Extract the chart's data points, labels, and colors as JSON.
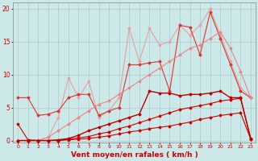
{
  "bg_color": "#cce8e8",
  "grid_color": "#aacccc",
  "xlabel": "Vent moyen/en rafales ( km/h )",
  "xlabel_color": "#cc0000",
  "xlabel_fontsize": 6.5,
  "xtick_color": "#cc0000",
  "ytick_color": "#cc0000",
  "x": [
    0,
    1,
    2,
    3,
    4,
    5,
    6,
    7,
    8,
    9,
    10,
    11,
    12,
    13,
    14,
    15,
    16,
    17,
    18,
    19,
    20,
    21,
    22,
    23
  ],
  "ylim": [
    -0.3,
    21
  ],
  "xlim": [
    -0.5,
    23.5
  ],
  "yticks": [
    0,
    5,
    10,
    15,
    20
  ],
  "series": [
    {
      "name": "line_dark_red_bottom_flat",
      "color": "#cc0000",
      "lw": 0.8,
      "marker": "D",
      "ms": 1.5,
      "zorder": 3,
      "y": [
        2.5,
        0.1,
        0.0,
        0.0,
        0.0,
        0.1,
        0.2,
        0.3,
        0.5,
        0.7,
        1.0,
        1.3,
        1.5,
        1.8,
        2.0,
        2.2,
        2.5,
        2.8,
        3.2,
        3.5,
        3.8,
        4.0,
        4.2,
        0.2
      ]
    },
    {
      "name": "line_dark_red_linear1",
      "color": "#cc0000",
      "lw": 0.8,
      "marker": "D",
      "ms": 1.5,
      "zorder": 3,
      "y": [
        0.0,
        0.0,
        0.0,
        0.0,
        0.0,
        0.2,
        0.4,
        0.6,
        1.0,
        1.3,
        1.8,
        2.2,
        2.7,
        3.2,
        3.7,
        4.2,
        4.7,
        5.0,
        5.3,
        5.6,
        6.0,
        6.2,
        6.4,
        0.2
      ]
    },
    {
      "name": "line_dark_red_linear2",
      "color": "#bb0000",
      "lw": 1.0,
      "marker": "D",
      "ms": 1.5,
      "zorder": 3,
      "y": [
        0.0,
        0.0,
        0.0,
        0.0,
        0.1,
        0.3,
        0.8,
        1.5,
        2.0,
        2.5,
        3.0,
        3.5,
        4.0,
        7.5,
        7.2,
        7.2,
        6.8,
        7.0,
        7.0,
        7.2,
        7.5,
        6.5,
        6.5,
        0.3
      ]
    },
    {
      "name": "line_medium_red_wavy",
      "color": "#dd3333",
      "lw": 0.8,
      "marker": "D",
      "ms": 1.5,
      "zorder": 2,
      "y": [
        6.5,
        6.5,
        3.8,
        4.0,
        4.5,
        6.5,
        7.0,
        7.0,
        3.8,
        4.5,
        5.0,
        11.5,
        11.5,
        11.8,
        12.0,
        7.5,
        17.5,
        17.2,
        13.0,
        19.5,
        15.5,
        11.5,
        7.5,
        6.5
      ]
    },
    {
      "name": "line_light_pink_linear",
      "color": "#e88888",
      "lw": 0.8,
      "marker": "D",
      "ms": 1.5,
      "zorder": 2,
      "y": [
        0.0,
        0.0,
        0.0,
        0.5,
        1.5,
        2.5,
        3.5,
        4.5,
        5.5,
        6.0,
        7.0,
        8.0,
        9.0,
        10.0,
        11.0,
        12.0,
        13.0,
        14.0,
        14.5,
        15.5,
        16.5,
        14.0,
        10.5,
        6.5
      ]
    },
    {
      "name": "line_light_pink_squiggly",
      "color": "#e8a0a0",
      "lw": 0.8,
      "marker": "D",
      "ms": 1.5,
      "zorder": 1,
      "y": [
        0.0,
        0.0,
        0.0,
        0.5,
        3.5,
        9.5,
        6.5,
        9.0,
        3.5,
        4.5,
        6.5,
        17.0,
        12.0,
        17.0,
        14.5,
        15.0,
        17.5,
        16.0,
        17.5,
        20.0,
        16.0,
        12.0,
        8.0,
        6.5
      ]
    }
  ]
}
